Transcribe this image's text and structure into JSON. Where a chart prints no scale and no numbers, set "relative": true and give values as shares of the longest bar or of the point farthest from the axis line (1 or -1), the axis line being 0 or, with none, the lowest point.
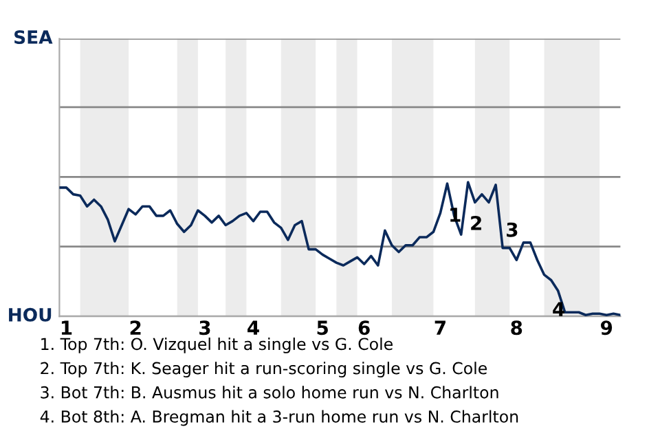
{
  "chart_data": {
    "type": "line",
    "relative": true,
    "categories": [
      null,
      "1",
      null,
      null,
      null,
      null,
      null,
      null,
      null,
      null,
      null,
      "2",
      null,
      null,
      null,
      null,
      null,
      null,
      null,
      null,
      null,
      "3",
      null,
      null,
      null,
      null,
      null,
      null,
      "4",
      null,
      null,
      null,
      null,
      null,
      null,
      null,
      null,
      null,
      "5",
      null,
      null,
      null,
      null,
      null,
      "6",
      null,
      null,
      null,
      null,
      null,
      null,
      null,
      null,
      null,
      null,
      "7",
      null,
      null,
      null,
      null,
      null,
      null,
      null,
      null,
      null,
      null,
      "8",
      null,
      null,
      null,
      null,
      null,
      null,
      null,
      null,
      null,
      null,
      null,
      null,
      "9",
      null,
      null
    ],
    "series": [
      {
        "color": "#0b2a5b",
        "values": [
          0.96,
          0.96,
          0.91,
          0.9,
          0.82,
          0.87,
          0.82,
          0.72,
          0.56,
          0.68,
          0.8,
          0.76,
          0.82,
          0.82,
          0.75,
          0.75,
          0.79,
          0.69,
          0.63,
          0.68,
          0.79,
          0.75,
          0.7,
          0.75,
          0.68,
          0.71,
          0.75,
          0.77,
          0.71,
          0.78,
          0.78,
          0.7,
          0.66,
          0.57,
          0.68,
          0.71,
          0.5,
          0.5,
          0.46,
          0.43,
          0.4,
          0.38,
          0.41,
          0.44,
          0.39,
          0.45,
          0.38,
          0.64,
          0.53,
          0.48,
          0.53,
          0.53,
          0.59,
          0.59,
          0.63,
          0.77,
          0.99,
          0.75,
          0.61,
          1,
          0.85,
          0.91,
          0.85,
          0.98,
          0.51,
          0.51,
          0.42,
          0.55,
          0.55,
          0.42,
          0.31,
          0.27,
          0.19,
          0.03,
          0.03,
          0.03,
          0.01,
          0.02,
          0.02,
          0.01,
          0.02,
          0.01
        ]
      }
    ],
    "ref_lines": [
      {
        "axis": "y",
        "value": 0,
        "label": "HOU"
      },
      {
        "axis": "y",
        "value": 0.52,
        "label": null
      },
      {
        "axis": "y",
        "value": 1.04,
        "label": null
      },
      {
        "axis": "y",
        "value": 1.56,
        "label": null
      },
      {
        "axis": "y",
        "value": 2.07,
        "label": "SEA"
      }
    ],
    "annotations": [
      "1",
      "2",
      "3",
      "4",
      "1. Top 7th: O. Vizquel hit a single vs G. Cole",
      "2. Top 7th: K. Seager hit a run-scoring single vs G. Cole",
      "3. Bot 7th: B. Ausmus hit a solo home run vs N. Charlton",
      "4. Bot 8th: A. Bregman hit a 3-run home run vs N. Charlton"
    ],
    "marker": "none",
    "line_style": "solid"
  }
}
